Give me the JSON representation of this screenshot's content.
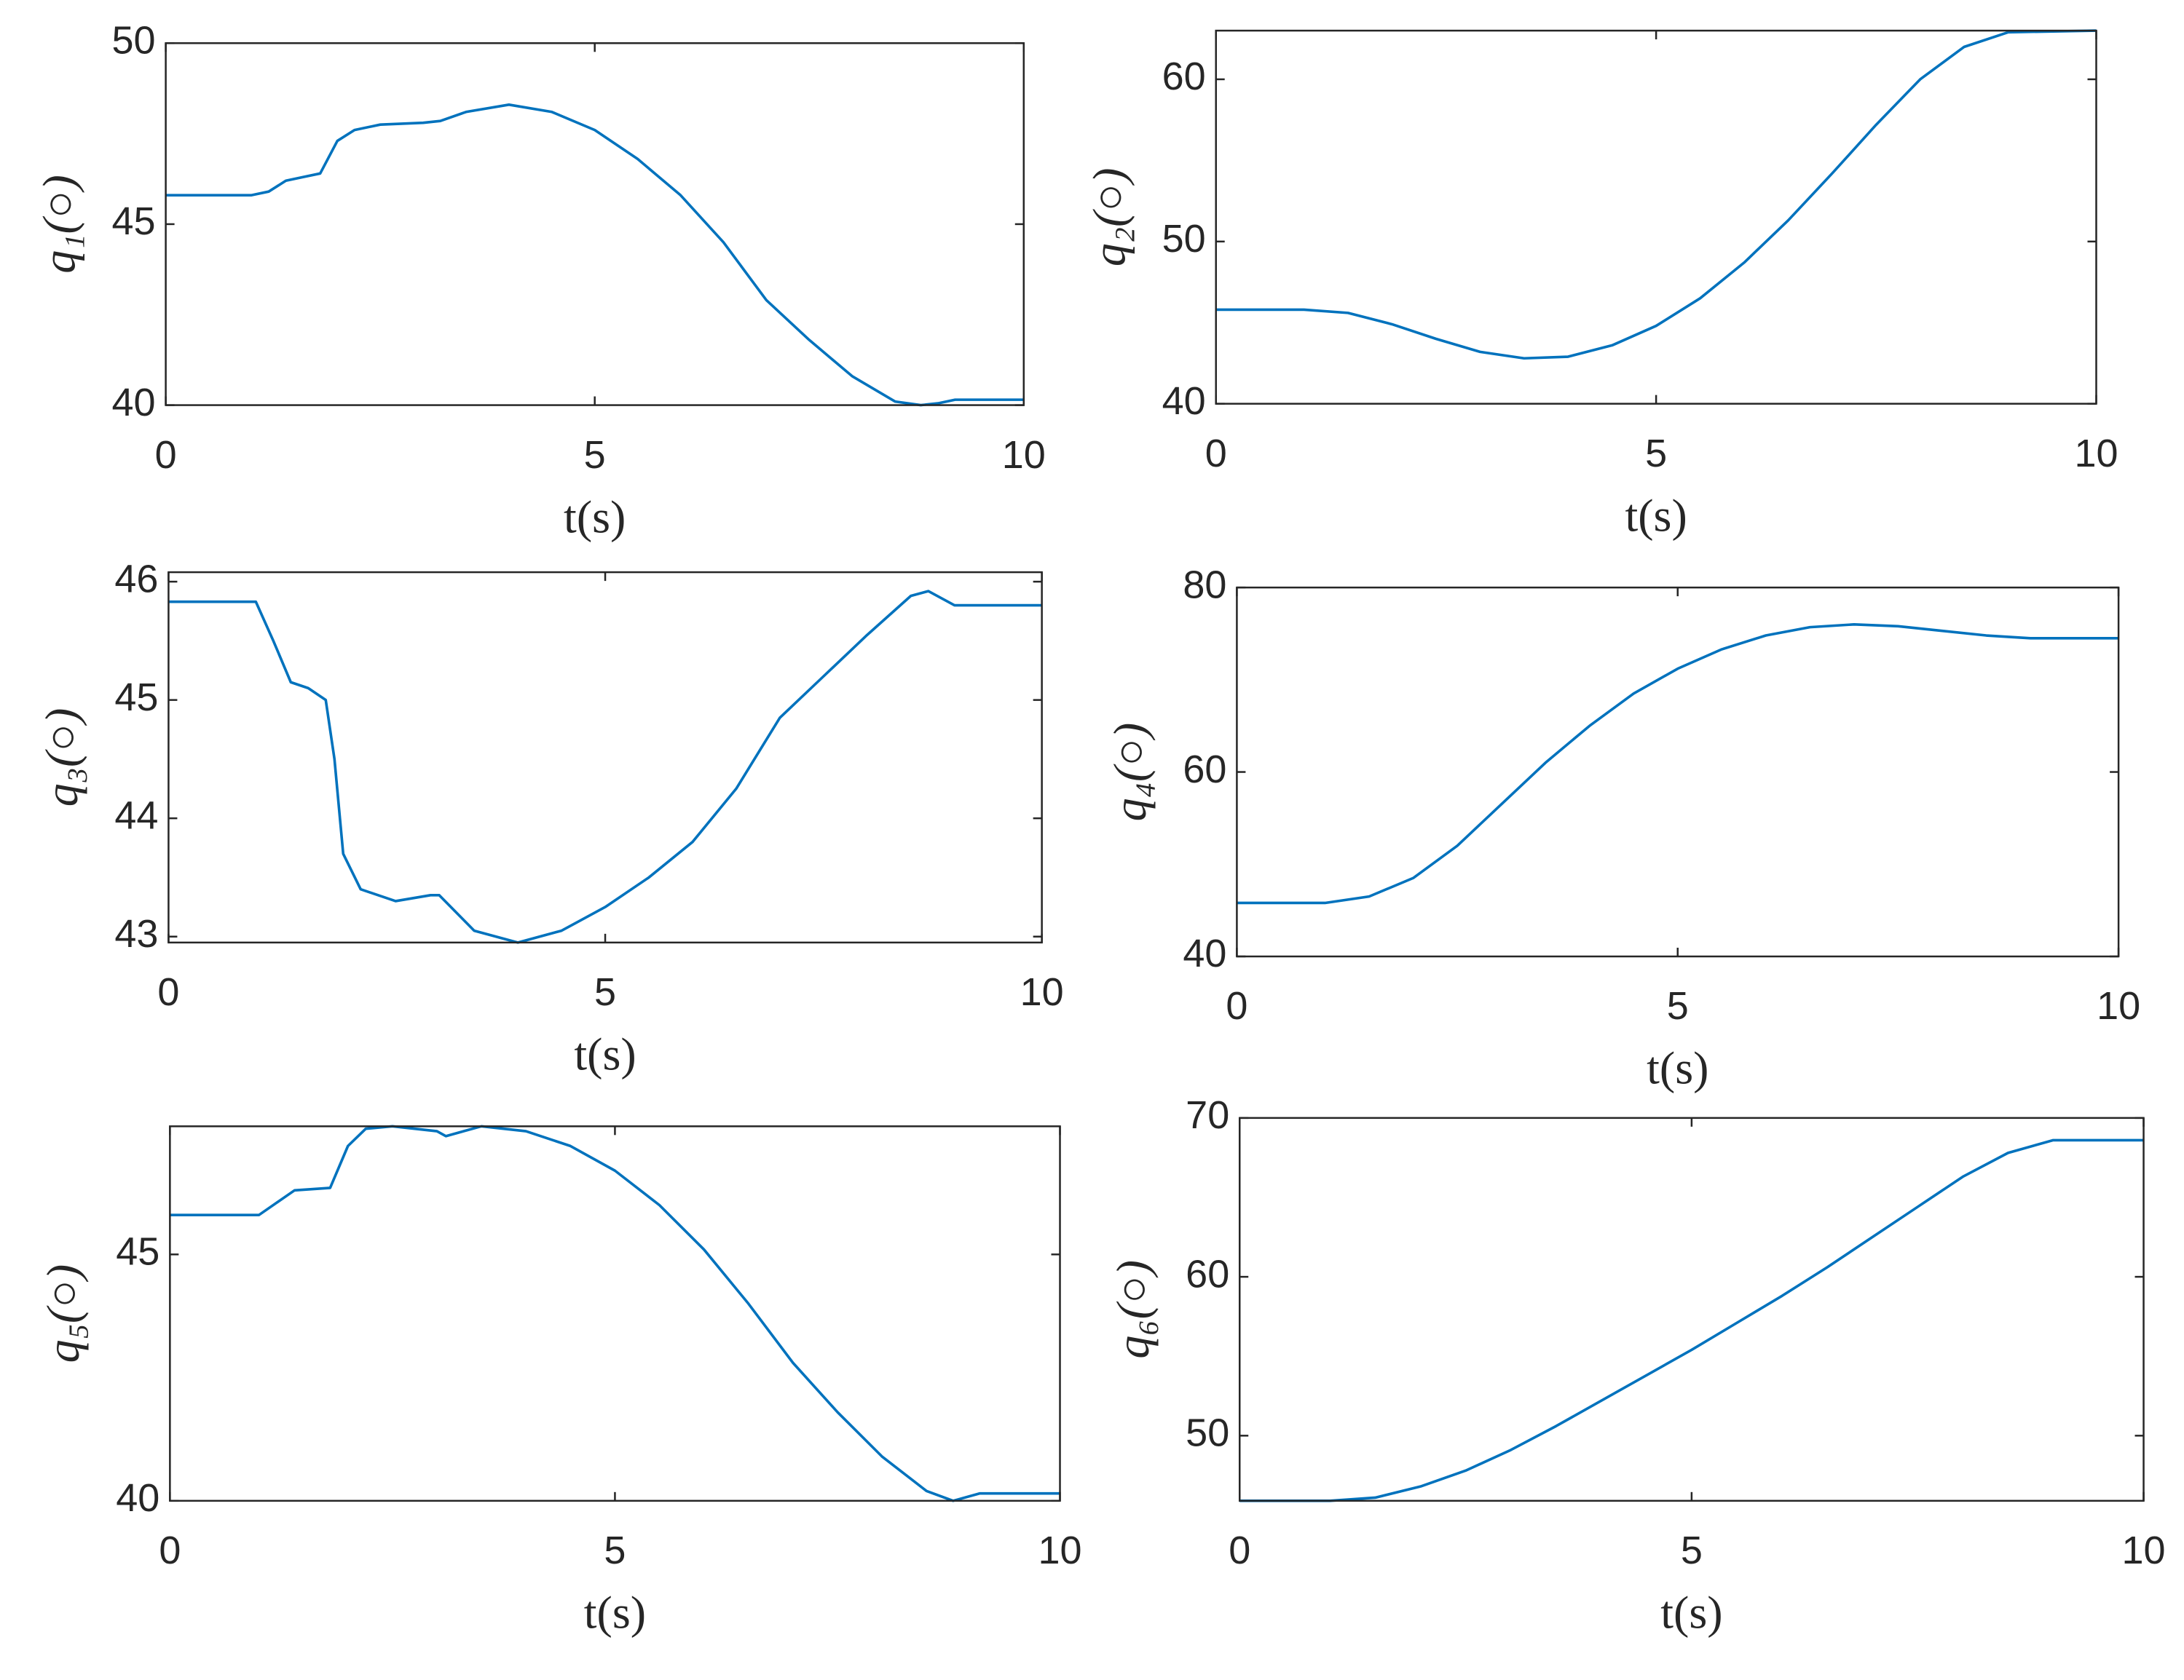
{
  "chart_data": [
    {
      "type": "line",
      "xlabel": "t(s)",
      "ylabel": "q₁(○)",
      "color": "#0072bd",
      "x": [
        0,
        1,
        1.2,
        1.4,
        1.6,
        1.8,
        2,
        2.2,
        2.5,
        3,
        3.2,
        3.5,
        4,
        4.5,
        5,
        5.5,
        6,
        6.5,
        7,
        7.5,
        8,
        8.5,
        8.8,
        9,
        9.2,
        10
      ],
      "values": [
        45.8,
        45.8,
        45.9,
        46.2,
        46.3,
        46.4,
        47.3,
        47.6,
        47.75,
        47.8,
        47.85,
        48.1,
        48.3,
        48.1,
        47.6,
        46.8,
        45.8,
        44.5,
        42.9,
        41.8,
        40.8,
        40.1,
        40.0,
        40.05,
        40.15,
        40.15
      ],
      "xlim": [
        0,
        10
      ],
      "ylim": [
        40,
        50
      ],
      "xticks": [
        0,
        5,
        10
      ],
      "yticks": [
        40,
        45,
        50
      ]
    },
    {
      "type": "line",
      "xlabel": "t(s)",
      "ylabel": "q₂(○)",
      "color": "#0072bd",
      "x": [
        0,
        1,
        1.5,
        2,
        2.5,
        3,
        3.5,
        4,
        4.5,
        5,
        5.5,
        6,
        6.5,
        7,
        7.5,
        8,
        8.5,
        9,
        10
      ],
      "values": [
        45.8,
        45.8,
        45.6,
        44.9,
        44.0,
        43.2,
        42.8,
        42.9,
        43.6,
        44.8,
        46.5,
        48.7,
        51.3,
        54.2,
        57.2,
        60.0,
        62.0,
        62.9,
        63
      ],
      "xlim": [
        0,
        10
      ],
      "ylim": [
        40,
        63
      ],
      "xticks": [
        0,
        5,
        10
      ],
      "yticks": [
        40,
        50,
        60
      ]
    },
    {
      "type": "line",
      "xlabel": "t(s)",
      "ylabel": "q₃(○)",
      "color": "#0072bd",
      "x": [
        0,
        1,
        1.2,
        1.4,
        1.6,
        1.8,
        1.9,
        2,
        2.2,
        2.6,
        3,
        3.1,
        3.5,
        4,
        4.5,
        5,
        5.5,
        6,
        6.5,
        7,
        7.5,
        8,
        8.5,
        8.7,
        9,
        10
      ],
      "values": [
        45.83,
        45.83,
        45.5,
        45.15,
        45.1,
        45.0,
        44.5,
        43.7,
        43.4,
        43.3,
        43.35,
        43.35,
        43.05,
        42.95,
        43.05,
        43.25,
        43.5,
        43.8,
        44.25,
        44.85,
        45.2,
        45.55,
        45.88,
        45.92,
        45.8,
        45.8
      ],
      "xlim": [
        0,
        10
      ],
      "ylim": [
        42.95,
        46.08
      ],
      "xticks": [
        0,
        5,
        10
      ],
      "yticks": [
        43,
        44,
        45,
        46
      ]
    },
    {
      "type": "line",
      "xlabel": "t(s)",
      "ylabel": "q₄(○)",
      "color": "#0072bd",
      "x": [
        0,
        1,
        1.5,
        2,
        2.5,
        3,
        3.5,
        4,
        4.5,
        5,
        5.5,
        6,
        6.5,
        7,
        7.5,
        8,
        8.5,
        9,
        10
      ],
      "values": [
        45.8,
        45.8,
        46.5,
        48.5,
        52,
        56.5,
        61,
        65,
        68.5,
        71.2,
        73.3,
        74.8,
        75.7,
        76,
        75.8,
        75.3,
        74.8,
        74.5,
        74.5
      ],
      "xlim": [
        0,
        10
      ],
      "ylim": [
        40,
        80
      ],
      "xticks": [
        0,
        5,
        10
      ],
      "yticks": [
        40,
        60,
        80
      ]
    },
    {
      "type": "line",
      "xlabel": "t(s)",
      "ylabel": "q₅(○)",
      "color": "#0072bd",
      "x": [
        0,
        1,
        1.4,
        1.8,
        2,
        2.2,
        2.5,
        3,
        3.1,
        3.5,
        4,
        4.5,
        5,
        5.5,
        6,
        6.5,
        7,
        7.5,
        8,
        8.5,
        8.8,
        9.1,
        10
      ],
      "values": [
        45.8,
        45.8,
        46.3,
        46.35,
        47.2,
        47.55,
        47.6,
        47.5,
        47.4,
        47.6,
        47.5,
        47.2,
        46.7,
        46.0,
        45.1,
        44.0,
        42.8,
        41.8,
        40.9,
        40.2,
        40.0,
        40.15,
        40.15
      ],
      "xlim": [
        0,
        10
      ],
      "ylim": [
        40,
        47.6
      ],
      "xticks": [
        0,
        5,
        10
      ],
      "yticks": [
        40,
        45
      ]
    },
    {
      "type": "line",
      "xlabel": "t(s)",
      "ylabel": "q₆(○)",
      "color": "#0072bd",
      "x": [
        0,
        1,
        1.5,
        2,
        2.5,
        3,
        3.5,
        4,
        4.5,
        5,
        5.5,
        6,
        6.5,
        7,
        7.5,
        8,
        8.5,
        9,
        10
      ],
      "values": [
        45.9,
        45.9,
        46.1,
        46.8,
        47.8,
        49.1,
        50.6,
        52.2,
        53.8,
        55.4,
        57.1,
        58.8,
        60.6,
        62.5,
        64.4,
        66.3,
        67.8,
        68.6,
        68.6
      ],
      "xlim": [
        0,
        10
      ],
      "ylim": [
        45.9,
        70
      ],
      "xticks": [
        0,
        5,
        10
      ],
      "yticks": [
        50,
        60,
        70
      ]
    }
  ]
}
